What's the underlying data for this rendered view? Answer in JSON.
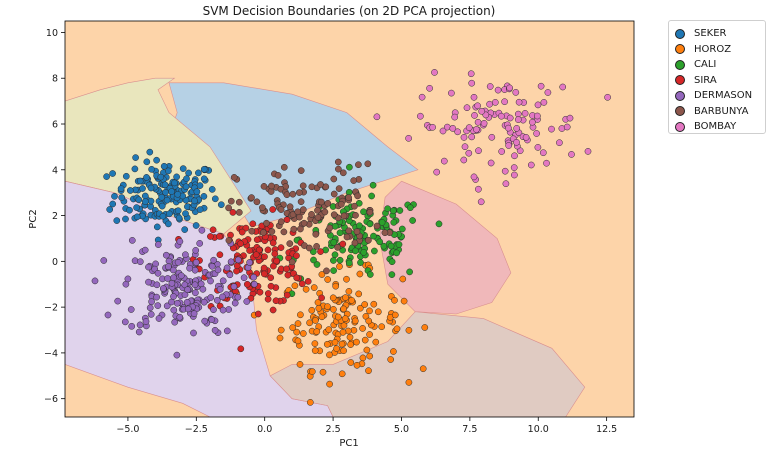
{
  "chart_data": {
    "type": "scatter",
    "title": "SVM Decision Boundaries (on 2D PCA projection)",
    "xlabel": "PC1",
    "ylabel": "PC2",
    "xlim": [
      -7.3,
      13.5
    ],
    "ylim": [
      -6.8,
      10.5
    ],
    "xticks": [
      -5.0,
      -2.5,
      0.0,
      2.5,
      5.0,
      7.5,
      10.0,
      12.5
    ],
    "xtick_labels": [
      "−5.0",
      "−2.5",
      "0.0",
      "2.5",
      "5.0",
      "7.5",
      "10.0",
      "12.5"
    ],
    "yticks": [
      -6,
      -4,
      -2,
      0,
      2,
      4,
      6,
      8,
      10
    ],
    "ytick_labels": [
      "−6",
      "−4",
      "−2",
      "0",
      "2",
      "4",
      "6",
      "8",
      "10"
    ],
    "grid": false,
    "legend_position": "outside-top-right",
    "background_region_color": "#fdd4a9",
    "regions": [
      {
        "class": "SEKER",
        "color": "#b6d1e5",
        "polygon": [
          [
            -3.5,
            7.8
          ],
          [
            -1.5,
            7.8
          ],
          [
            1.0,
            7.3
          ],
          [
            3.0,
            6.5
          ],
          [
            4.5,
            5.0
          ],
          [
            5.6,
            4.0
          ],
          [
            3.0,
            3.0
          ],
          [
            1.0,
            2.0
          ],
          [
            -0.5,
            1.5
          ],
          [
            -1.5,
            3.5
          ],
          [
            -3.5,
            5.5
          ],
          [
            -3.2,
            6.5
          ]
        ]
      },
      {
        "class": "SEKER",
        "color": "#e9e6bd",
        "polygon": [
          [
            -7.3,
            7.0
          ],
          [
            -6.0,
            7.5
          ],
          [
            -5.0,
            7.8
          ],
          [
            -4.0,
            8.0
          ],
          [
            -3.3,
            8.0
          ],
          [
            -3.9,
            7.5
          ],
          [
            -3.5,
            6.5
          ],
          [
            -2.0,
            5.0
          ],
          [
            -0.5,
            2.2
          ],
          [
            -1.5,
            1.2
          ],
          [
            -3.5,
            2.0
          ],
          [
            -5.5,
            3.0
          ],
          [
            -7.3,
            3.5
          ]
        ]
      },
      {
        "class": "SIRA",
        "color": "#f0b8ba",
        "polygon": [
          [
            5.0,
            3.5
          ],
          [
            7.0,
            2.5
          ],
          [
            8.5,
            1.0
          ],
          [
            9.0,
            -0.5
          ],
          [
            8.3,
            -1.8
          ],
          [
            7.0,
            -2.3
          ],
          [
            5.5,
            -2.2
          ],
          [
            4.5,
            -1.0
          ],
          [
            4.2,
            1.0
          ],
          [
            4.4,
            2.8
          ]
        ]
      },
      {
        "class": "DERMASON",
        "color": "#e0d3ec",
        "polygon": [
          [
            -7.3,
            3.5
          ],
          [
            -5.5,
            3.0
          ],
          [
            -3.5,
            2.0
          ],
          [
            -1.5,
            1.2
          ],
          [
            -0.5,
            -0.5
          ],
          [
            -0.3,
            -3.0
          ],
          [
            0.2,
            -5.0
          ],
          [
            1.0,
            -6.0
          ],
          [
            2.3,
            -6.3
          ],
          [
            2.5,
            -6.8
          ],
          [
            -7.3,
            -6.8
          ]
        ]
      },
      {
        "class": "BARBUNYA",
        "color": "#e0cbc2",
        "polygon": [
          [
            0.2,
            -5.0
          ],
          [
            1.0,
            -6.0
          ],
          [
            2.3,
            -6.3
          ],
          [
            2.5,
            -6.8
          ],
          [
            5.5,
            -6.8
          ],
          [
            11.0,
            -6.8
          ],
          [
            11.7,
            -5.5
          ],
          [
            10.5,
            -3.8
          ],
          [
            8.0,
            -2.5
          ],
          [
            5.5,
            -2.2
          ],
          [
            4.5,
            -3.5
          ],
          [
            2.5,
            -4.5
          ],
          [
            1.0,
            -4.5
          ]
        ]
      },
      {
        "class": "HOROZ",
        "color": "#fdd4a9",
        "polygon": [
          [
            -7.3,
            -4.5
          ],
          [
            -5.0,
            -5.5
          ],
          [
            -3.0,
            -6.2
          ],
          [
            -2.0,
            -6.8
          ],
          [
            -7.3,
            -6.8
          ]
        ]
      }
    ],
    "series": [
      {
        "name": "SEKER",
        "color": "#1f77b4",
        "center": [
          -3.6,
          2.9
        ],
        "spread": [
          0.95,
          0.75
        ],
        "n": 170
      },
      {
        "name": "HOROZ",
        "color": "#ff7f0e",
        "center": [
          2.8,
          -2.6
        ],
        "spread": [
          1.1,
          1.05
        ],
        "n": 150
      },
      {
        "name": "CALI",
        "color": "#2ca02c",
        "center": [
          3.6,
          1.0
        ],
        "spread": [
          1.15,
          0.95
        ],
        "n": 140
      },
      {
        "name": "SIRA",
        "color": "#d62728",
        "center": [
          -0.3,
          0.0
        ],
        "spread": [
          1.0,
          0.95
        ],
        "n": 150
      },
      {
        "name": "DERMASON",
        "color": "#9467bd",
        "center": [
          -3.0,
          -1.1
        ],
        "spread": [
          1.1,
          1.05
        ],
        "n": 190
      },
      {
        "name": "BARBUNYA",
        "color": "#8c564b",
        "center": [
          1.6,
          2.2
        ],
        "spread": [
          1.3,
          1.0
        ],
        "n": 130
      },
      {
        "name": "BOMBAY",
        "color": "#e377c2",
        "center": [
          8.6,
          5.9
        ],
        "spread": [
          1.5,
          1.05
        ],
        "n": 120
      }
    ]
  }
}
